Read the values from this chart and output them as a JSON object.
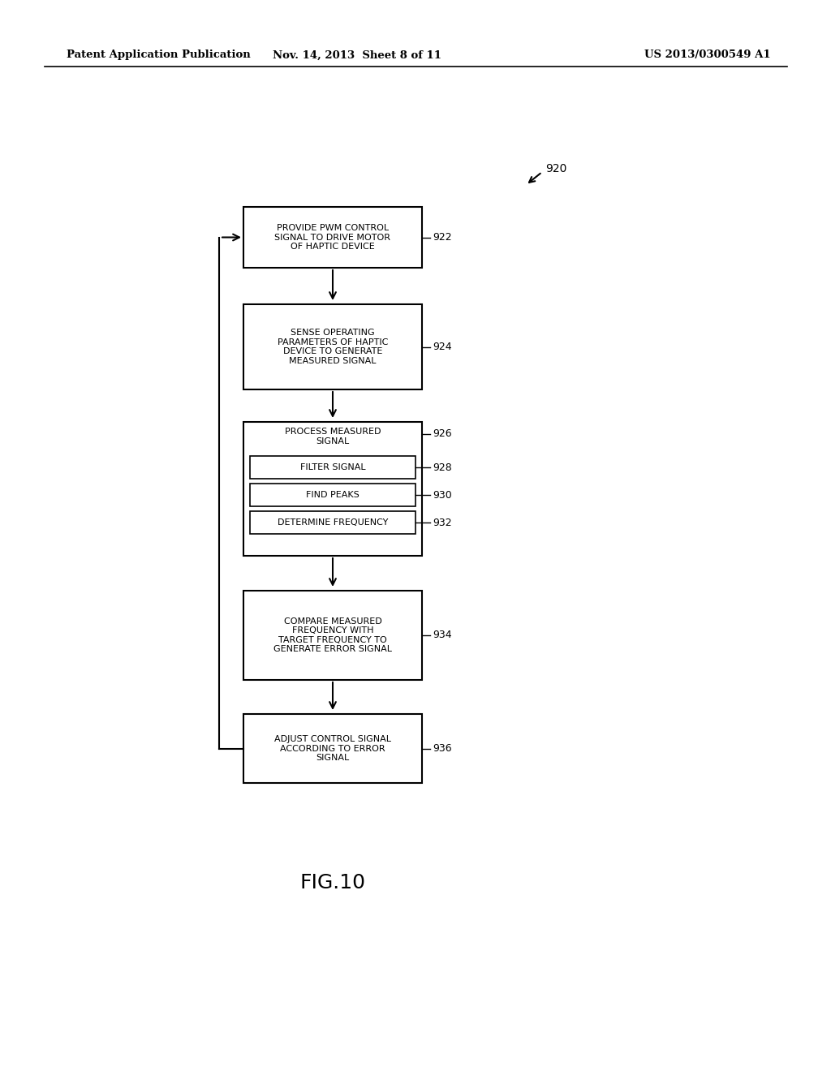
{
  "bg_color": "#ffffff",
  "text_color": "#000000",
  "header_left": "Patent Application Publication",
  "header_center": "Nov. 14, 2013  Sheet 8 of 11",
  "header_right": "US 2013/0300549 A1",
  "figure_label": "FIG.10",
  "diagram_label": "920",
  "box922_label": "PROVIDE PWM CONTROL\nSIGNAL TO DRIVE MOTOR\nOF HAPTIC DEVICE",
  "box924_label": "SENSE OPERATING\nPARAMETERS OF HAPTIC\nDEVICE TO GENERATE\nMEASURED SIGNAL",
  "box926_label": "PROCESS MEASURED\nSIGNAL",
  "box928_label": "FILTER SIGNAL",
  "box930_label": "FIND PEAKS",
  "box932_label": "DETERMINE FREQUENCY",
  "box934_label": "COMPARE MEASURED\nFREQUENCY WITH\nTARGET FREQUENCY TO\nGENERATE ERROR SIGNAL",
  "box936_label": "ADJUST CONTROL SIGNAL\nACCORDING TO ERROR\nSIGNAL",
  "tag922": "922",
  "tag924": "924",
  "tag926": "926",
  "tag928": "928",
  "tag930": "930",
  "tag932": "932",
  "tag934": "934",
  "tag936": "936"
}
